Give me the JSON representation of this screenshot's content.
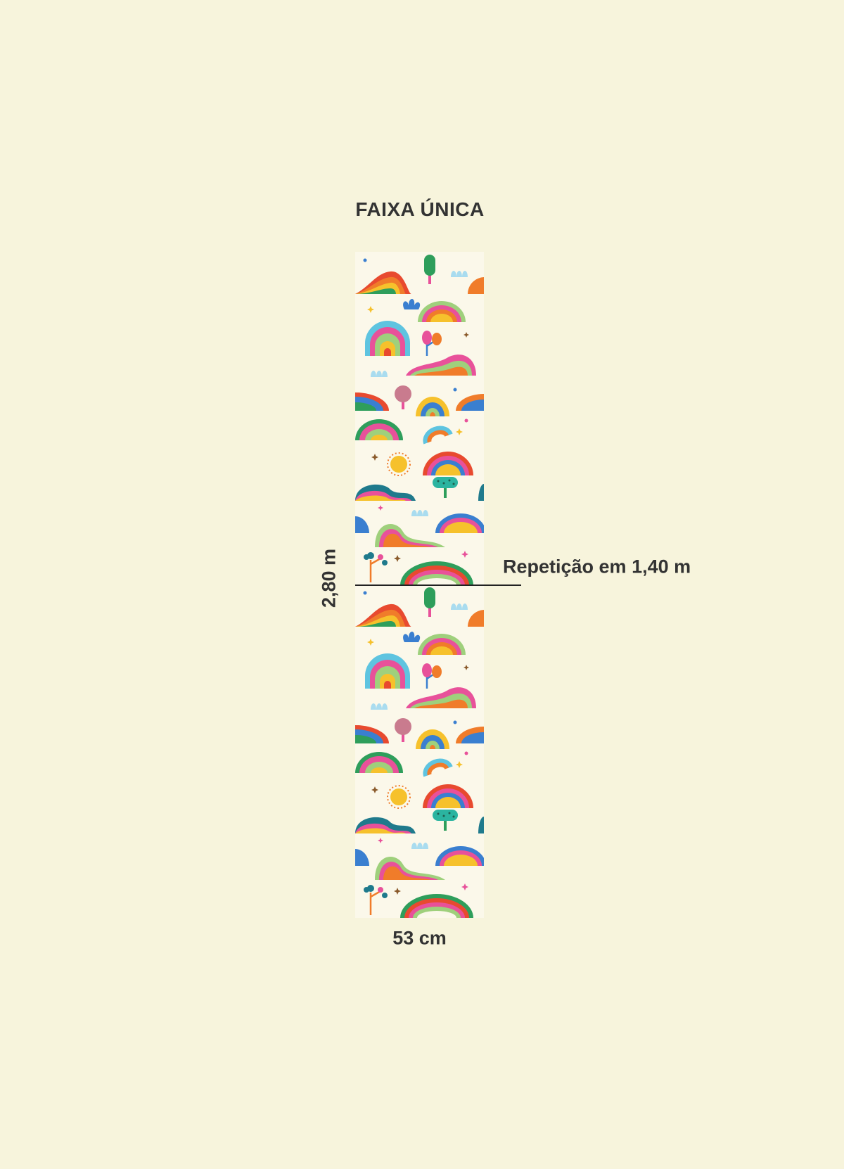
{
  "title": "FAIXA ÚNICA",
  "height_label": "2,80 m",
  "width_label": "53 cm",
  "repeat_label": "Repetição em 1,40 m",
  "colors": {
    "background": "#f7f4dc",
    "panel": "#fbf8ea",
    "text": "#333333",
    "rainbow": [
      "#e84a2f",
      "#f07c2a",
      "#f6c12c",
      "#2e9e5b",
      "#3a7fd0",
      "#e8519a",
      "#9fd07c",
      "#5ec4e0"
    ]
  },
  "pattern": {
    "motifs": [
      "rainbow-arch",
      "wavy-hill",
      "sun",
      "cloud",
      "tree",
      "star"
    ]
  }
}
